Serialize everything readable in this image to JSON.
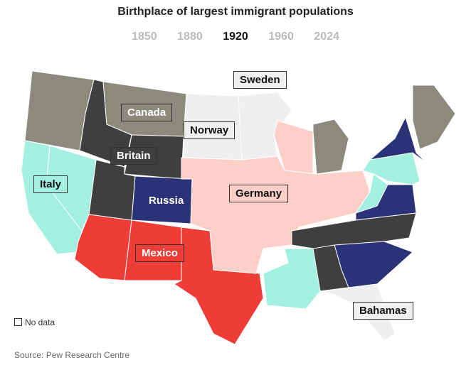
{
  "header": {
    "title": "Birthplace of largest immigrant populations"
  },
  "years": [
    "1850",
    "1880",
    "1920",
    "1960",
    "2024"
  ],
  "map_labels": [
    "Sweden",
    "Canada",
    "Norway",
    "Britain",
    "Italy",
    "Russia",
    "Germany",
    "Mexico",
    "Bahamas"
  ],
  "legend": {
    "no_data": "No data"
  },
  "source": "Source: Pew Research Centre"
}
